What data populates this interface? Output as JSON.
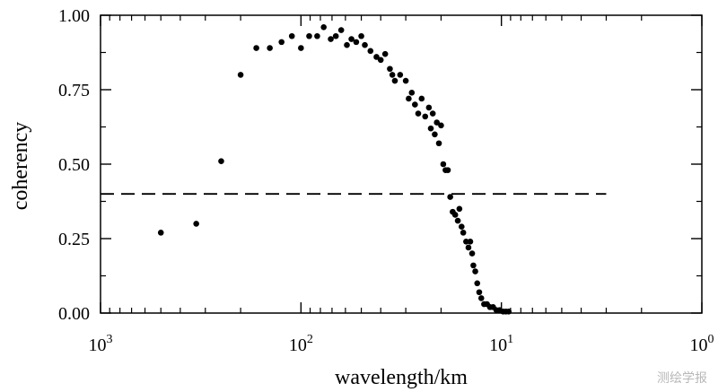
{
  "chart_data": {
    "type": "scatter",
    "xlabel": "wavelength/km",
    "ylabel": "coherency",
    "x_scale": "log",
    "x_reversed": true,
    "xlim": [
      1000,
      1
    ],
    "ylim": [
      0,
      1
    ],
    "x_ticks": [
      {
        "value": 1000,
        "base": "10",
        "exp": "3"
      },
      {
        "value": 100,
        "base": "10",
        "exp": "2"
      },
      {
        "value": 10,
        "base": "10",
        "exp": "1"
      },
      {
        "value": 1,
        "base": "10",
        "exp": "0"
      }
    ],
    "y_ticks": [
      "0.00",
      "0.25",
      "0.50",
      "0.75",
      "1.00"
    ],
    "reference_line": {
      "y": 0.4,
      "x_range": [
        1000,
        3
      ],
      "style": "dashed"
    },
    "grid": false,
    "points": [
      [
        500,
        0.27
      ],
      [
        333,
        0.3
      ],
      [
        250,
        0.51
      ],
      [
        200,
        0.8
      ],
      [
        167,
        0.89
      ],
      [
        143,
        0.89
      ],
      [
        125,
        0.91
      ],
      [
        111,
        0.93
      ],
      [
        100,
        0.89
      ],
      [
        91,
        0.93
      ],
      [
        83,
        0.93
      ],
      [
        77,
        0.96
      ],
      [
        71,
        0.92
      ],
      [
        67,
        0.93
      ],
      [
        63,
        0.95
      ],
      [
        59,
        0.9
      ],
      [
        56,
        0.92
      ],
      [
        53,
        0.91
      ],
      [
        50,
        0.93
      ],
      [
        48,
        0.9
      ],
      [
        45,
        0.88
      ],
      [
        42,
        0.86
      ],
      [
        40,
        0.85
      ],
      [
        38,
        0.87
      ],
      [
        36,
        0.82
      ],
      [
        35,
        0.8
      ],
      [
        34,
        0.78
      ],
      [
        32,
        0.8
      ],
      [
        30,
        0.78
      ],
      [
        29,
        0.72
      ],
      [
        28,
        0.74
      ],
      [
        27,
        0.7
      ],
      [
        26,
        0.67
      ],
      [
        25,
        0.72
      ],
      [
        24,
        0.66
      ],
      [
        23,
        0.69
      ],
      [
        22.5,
        0.62
      ],
      [
        22,
        0.67
      ],
      [
        21.5,
        0.6
      ],
      [
        21,
        0.64
      ],
      [
        20.5,
        0.57
      ],
      [
        20,
        0.63
      ],
      [
        19.5,
        0.5
      ],
      [
        19,
        0.48
      ],
      [
        18.5,
        0.48
      ],
      [
        18,
        0.39
      ],
      [
        17.5,
        0.34
      ],
      [
        17,
        0.33
      ],
      [
        16.5,
        0.31
      ],
      [
        16.2,
        0.35
      ],
      [
        15.8,
        0.29
      ],
      [
        15.5,
        0.27
      ],
      [
        15.0,
        0.24
      ],
      [
        14.6,
        0.22
      ],
      [
        14.3,
        0.24
      ],
      [
        14.0,
        0.2
      ],
      [
        13.8,
        0.16
      ],
      [
        13.5,
        0.14
      ],
      [
        13.2,
        0.1
      ],
      [
        12.9,
        0.07
      ],
      [
        12.6,
        0.05
      ],
      [
        12.2,
        0.03
      ],
      [
        11.8,
        0.03
      ],
      [
        11.4,
        0.02
      ],
      [
        11.0,
        0.02
      ],
      [
        10.6,
        0.01
      ],
      [
        10.2,
        0.01
      ],
      [
        9.8,
        0.005
      ],
      [
        9.5,
        0.005
      ],
      [
        9.2,
        0.005
      ]
    ]
  },
  "watermark": "测绘学报"
}
